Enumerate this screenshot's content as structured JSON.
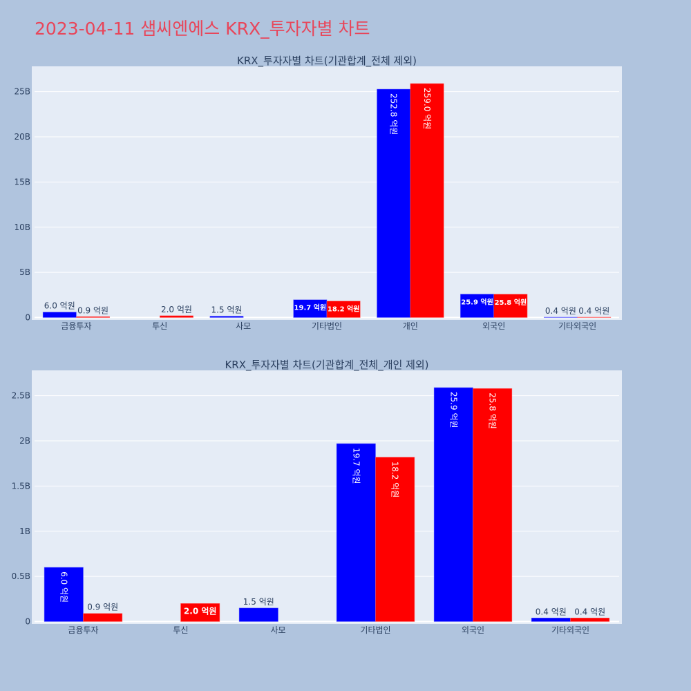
{
  "page": {
    "title": "2023-04-11 샘씨엔에스 KRX_투자자별 차트",
    "background": "#b0c4de",
    "title_color": "#e8465a"
  },
  "colors": {
    "series_1": "#0000ff",
    "series_2": "#ff0000",
    "plot_bg": "#e5ecf6",
    "grid": "#ffffff"
  },
  "chart_data": [
    {
      "type": "bar",
      "title": "KRX_투자자별 차트(기관합계_전체 제외)",
      "xlabel": "",
      "ylabel": "",
      "categories": [
        "금융투자",
        "투신",
        "사모",
        "기타법인",
        "개인",
        "외국인",
        "기타외국인"
      ],
      "series": [
        {
          "name": "series_1",
          "color": "#0000ff",
          "values": [
            0.6,
            0,
            0.15,
            1.97,
            25.28,
            2.59,
            0.04
          ],
          "labels": [
            "6.0 억원",
            "",
            "1.5 억원",
            "19.7 억원",
            "252.8 억원",
            "25.9 억원",
            "0.4 억원"
          ]
        },
        {
          "name": "series_2",
          "color": "#ff0000",
          "values": [
            0.09,
            0.2,
            0,
            1.82,
            25.9,
            2.58,
            0.04
          ],
          "labels": [
            "0.9 억원",
            "2.0 억원",
            "",
            "18.2 억원",
            "259.0 억원",
            "25.8 억원",
            "0.4 억원"
          ]
        }
      ],
      "unit": "B (KRW)",
      "yticks": [
        0,
        5,
        10,
        15,
        20,
        25
      ],
      "ytick_labels": [
        "0",
        "5B",
        "10B",
        "15B",
        "20B",
        "25B"
      ],
      "ylim": [
        0,
        27.5
      ],
      "grid": true,
      "legend": "none"
    },
    {
      "type": "bar",
      "title": "KRX_투자자별 차트(기관합계_전체_개인 제외)",
      "xlabel": "",
      "ylabel": "",
      "categories": [
        "금융투자",
        "투신",
        "사모",
        "기타법인",
        "외국인",
        "기타외국인"
      ],
      "series": [
        {
          "name": "series_1",
          "color": "#0000ff",
          "values": [
            0.6,
            0,
            0.15,
            1.97,
            2.59,
            0.04
          ],
          "labels": [
            "6.0 억원",
            "",
            "1.5 억원",
            "19.7 억원",
            "25.9 억원",
            "0.4 억원"
          ]
        },
        {
          "name": "series_2",
          "color": "#ff0000",
          "values": [
            0.09,
            0.2,
            0,
            1.82,
            2.58,
            0.04
          ],
          "labels": [
            "0.9 억원",
            "2.0 억원",
            "",
            "18.2 억원",
            "25.8 억원",
            "0.4 억원"
          ]
        }
      ],
      "unit": "B (KRW)",
      "yticks": [
        0,
        0.5,
        1,
        1.5,
        2,
        2.5
      ],
      "ytick_labels": [
        "0",
        "0.5B",
        "1B",
        "1.5B",
        "2B",
        "2.5B"
      ],
      "ylim": [
        0,
        2.75
      ],
      "grid": true,
      "legend": "none"
    }
  ]
}
